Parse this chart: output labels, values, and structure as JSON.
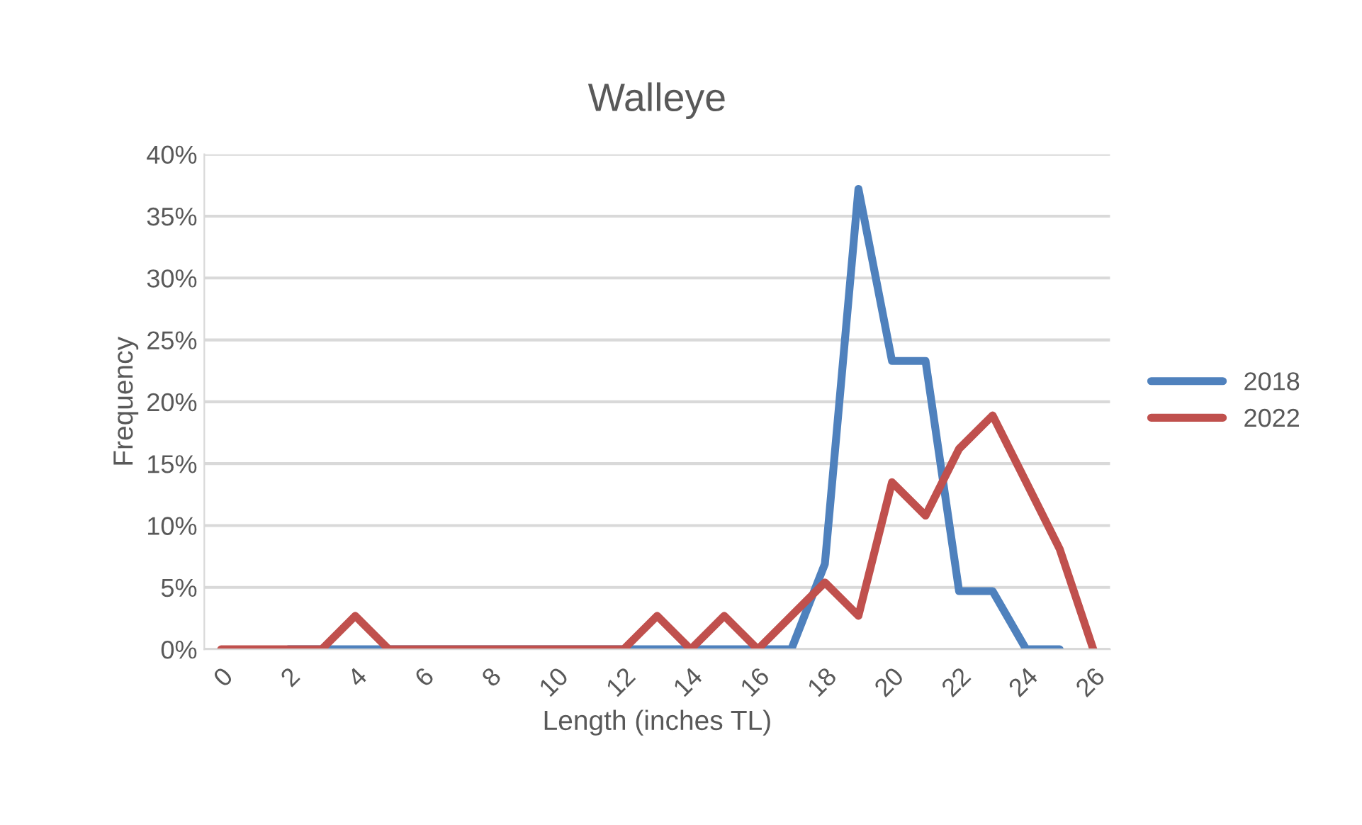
{
  "chart_data": {
    "type": "line",
    "title": "Walleye",
    "xlabel": "Length (inches TL)",
    "ylabel": "Frequency",
    "categories": [
      "0",
      null,
      "2",
      null,
      "4",
      null,
      "6",
      null,
      "8",
      null,
      "10",
      null,
      "12",
      null,
      "14",
      null,
      "16",
      null,
      "18",
      null,
      "20",
      null,
      "22",
      null,
      "24",
      null,
      "26"
    ],
    "series": [
      {
        "name": "2018",
        "color": "#4f81bd",
        "values": [
          null,
          null,
          0,
          0,
          0,
          0,
          0,
          0,
          0,
          0,
          0,
          0,
          0,
          0,
          0,
          0,
          0,
          0,
          6.9,
          37.2,
          23.3,
          23.3,
          4.7,
          4.7,
          0,
          0,
          null
        ]
      },
      {
        "name": "2022",
        "color": "#c0504d",
        "values": [
          0,
          0,
          0,
          0,
          2.7,
          0,
          0,
          0,
          0,
          0,
          0,
          0,
          0,
          2.7,
          0,
          2.7,
          0,
          2.7,
          5.4,
          2.7,
          13.5,
          10.8,
          16.2,
          18.9,
          13.5,
          8.1,
          0
        ]
      }
    ],
    "ylim": [
      0,
      40
    ],
    "yticks": [
      {
        "value": 0,
        "label": "0%"
      },
      {
        "value": 5,
        "label": "5%"
      },
      {
        "value": 10,
        "label": "10%"
      },
      {
        "value": 15,
        "label": "15%"
      },
      {
        "value": 20,
        "label": "20%"
      },
      {
        "value": 25,
        "label": "25%"
      },
      {
        "value": 30,
        "label": "30%"
      },
      {
        "value": 35,
        "label": "35%"
      },
      {
        "value": 40,
        "label": "40%"
      }
    ],
    "grid": "y",
    "legend": "right",
    "marker": "none",
    "line_style": "solid"
  }
}
